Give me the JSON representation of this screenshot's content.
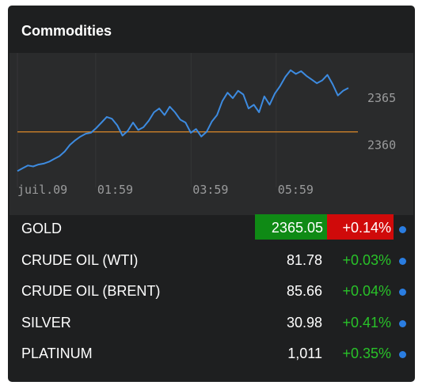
{
  "widget": {
    "title": "Commodities"
  },
  "chart_data": {
    "type": "line",
    "x_ticks": [
      "juil.09",
      "01:59",
      "03:59",
      "05:59"
    ],
    "y_ticks": [
      2365,
      2360
    ],
    "ylim": [
      2356.3,
      2369.0
    ],
    "reference_value": 2361.4,
    "series": [
      {
        "values": [
          2357.2,
          2357.5,
          2357.8,
          2357.7,
          2357.9,
          2358.0,
          2358.2,
          2358.5,
          2358.8,
          2359.3,
          2360.0,
          2360.5,
          2360.9,
          2361.2,
          2361.3,
          2361.8,
          2362.4,
          2363.0,
          2362.8,
          2362.1,
          2361.0,
          2361.5,
          2362.4,
          2361.6,
          2361.9,
          2362.6,
          2363.5,
          2363.9,
          2363.2,
          2364.1,
          2363.5,
          2362.7,
          2362.4,
          2361.3,
          2361.7,
          2360.9,
          2361.4,
          2362.5,
          2363.2,
          2364.7,
          2365.6,
          2365.0,
          2365.8,
          2365.4,
          2363.9,
          2364.3,
          2363.5,
          2365.2,
          2364.3,
          2365.5,
          2366.3,
          2367.3,
          2368.0,
          2367.6,
          2367.9,
          2367.4,
          2367.0,
          2366.6,
          2366.9,
          2367.5,
          2366.5,
          2365.3,
          2365.8,
          2366.1
        ]
      }
    ],
    "line_color": "#3d8be0",
    "reference_color": "#c07a2a"
  },
  "rows": [
    {
      "name": "GOLD",
      "price": "2365.05",
      "change": "+0.14%"
    },
    {
      "name": "CRUDE OIL (WTI)",
      "price": "81.78",
      "change": "+0.03%"
    },
    {
      "name": "CRUDE OIL (BRENT)",
      "price": "85.66",
      "change": "+0.04%"
    },
    {
      "name": "SILVER",
      "price": "30.98",
      "change": "+0.41%"
    },
    {
      "name": "PLATINUM",
      "price": "1,011",
      "change": "+0.35%"
    }
  ]
}
